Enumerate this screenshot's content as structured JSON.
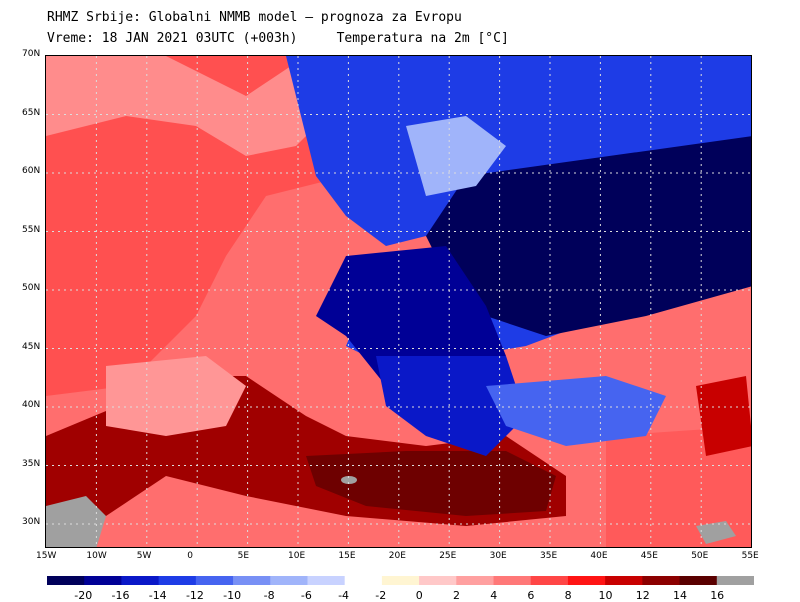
{
  "header": {
    "line1": "RHMZ Srbije: Globalni NMMB model — prognoza za Evropu",
    "line2": "Vreme: 18 JAN 2021 03UTC (+003h)     Temperatura na 2m [°C]"
  },
  "map": {
    "lat_labels": [
      "70N",
      "65N",
      "60N",
      "55N",
      "50N",
      "45N",
      "40N",
      "35N",
      "30N"
    ],
    "lon_labels": [
      "15W",
      "10W",
      "5W",
      "0",
      "5E",
      "10E",
      "15E",
      "20E",
      "25E",
      "30E",
      "35E",
      "40E",
      "45E",
      "50E",
      "55E"
    ],
    "grid": true
  },
  "colorbar": {
    "labels": [
      "-20",
      "-16",
      "-14",
      "-12",
      "-10",
      "-8",
      "-6",
      "-4",
      "-2",
      "0",
      "2",
      "4",
      "6",
      "8",
      "10",
      "12",
      "14",
      "16"
    ],
    "colors": [
      "#00005a",
      "#000096",
      "#0a18c8",
      "#1e3ce6",
      "#4664f0",
      "#7890f5",
      "#a0b4fa",
      "#c8d2ff",
      "#ffffff",
      "#fff5d2",
      "#ffc8c8",
      "#ffa0a0",
      "#ff7878",
      "#ff4646",
      "#ff1414",
      "#c80000",
      "#8c0000",
      "#5a0000",
      "#a0a0a0"
    ]
  }
}
